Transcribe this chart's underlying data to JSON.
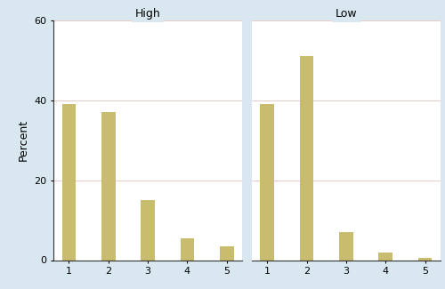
{
  "high_values": [
    39,
    37,
    15,
    5.5,
    3.5
  ],
  "low_values": [
    39,
    51,
    7,
    2,
    0.5
  ],
  "categories": [
    1,
    2,
    3,
    4,
    5
  ],
  "bar_color": "#c8bc6e",
  "bar_edgecolor": "#c8bc6e",
  "ylim": [
    0,
    60
  ],
  "yticks": [
    0,
    20,
    40,
    60
  ],
  "ylabel": "Percent",
  "panel_titles": [
    "High",
    "Low"
  ],
  "outer_background": "#d9e8f0",
  "plot_background": "#ffffff",
  "title_bg_color": "#d9e8f0",
  "grid_color": "#e8c0c0",
  "title_fontsize": 9,
  "tick_fontsize": 8,
  "ylabel_fontsize": 9,
  "bar_width": 0.35
}
